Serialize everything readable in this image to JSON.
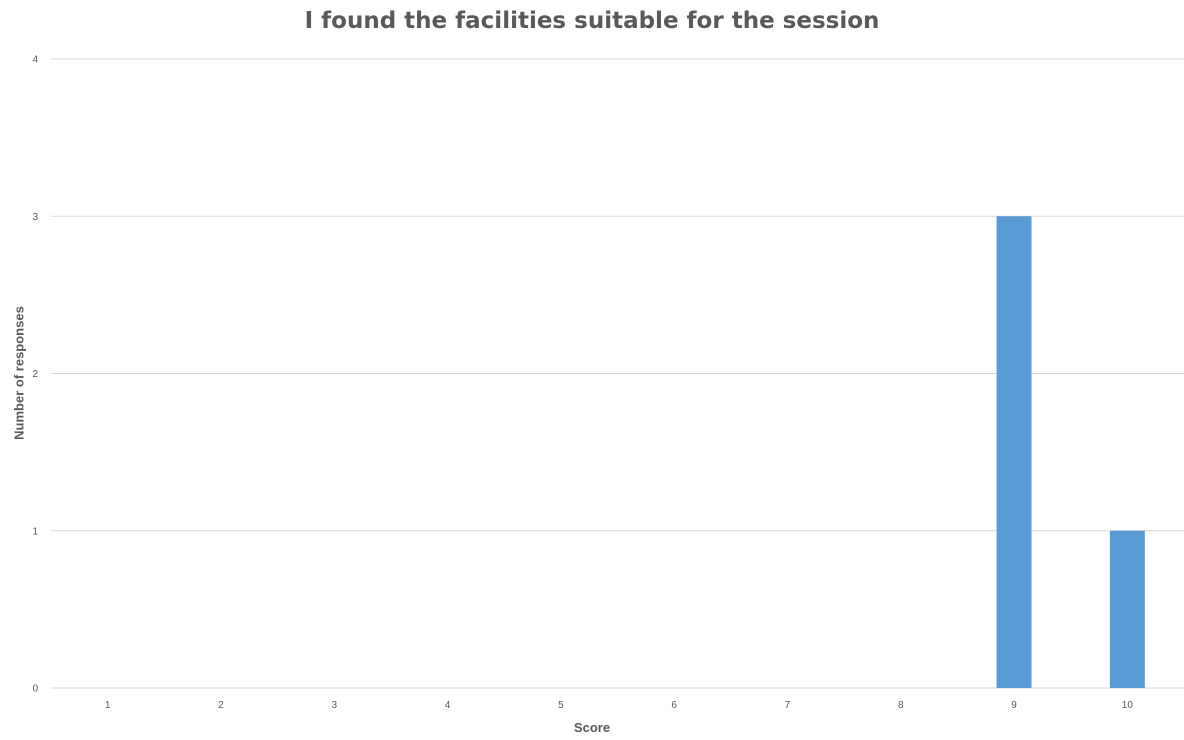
{
  "chart_data": {
    "type": "bar",
    "title": "I found the facilities suitable for the session",
    "xlabel": "Score",
    "ylabel": "Number of responses",
    "categories": [
      "1",
      "2",
      "3",
      "4",
      "5",
      "6",
      "7",
      "8",
      "9",
      "10"
    ],
    "values": [
      0,
      0,
      0,
      0,
      0,
      0,
      0,
      0,
      3,
      1
    ],
    "ylim": [
      0,
      4
    ],
    "yticks": [
      0,
      1,
      2,
      3,
      4
    ],
    "grid": true,
    "legend": "none",
    "bar_color": "#5b9bd5",
    "grid_color": "#d9d9d9",
    "text_color": "#595959"
  }
}
